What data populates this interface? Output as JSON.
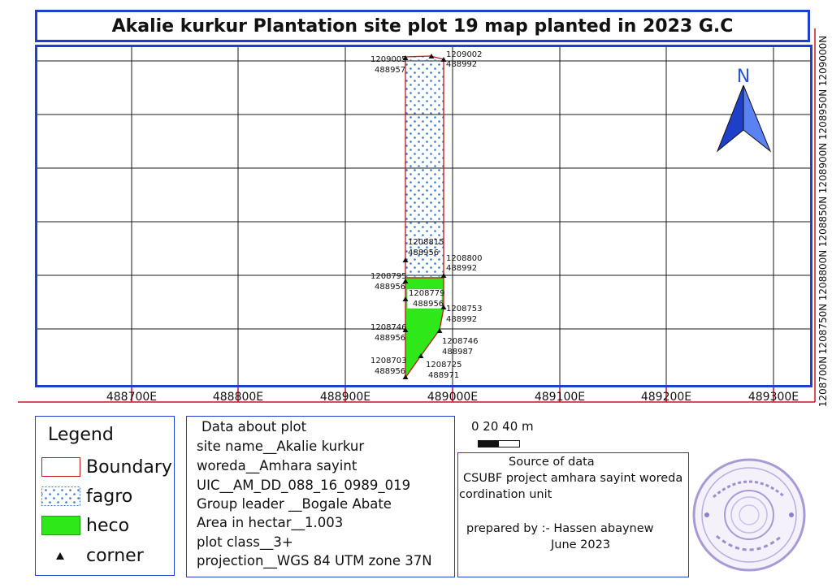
{
  "title": "Akalie kurkur Plantation site plot 19 map planted in 2023 G.C",
  "map": {
    "easting_labels": [
      "488700E",
      "488800E",
      "488900E",
      "489000E",
      "489100E",
      "489200E",
      "489300E"
    ],
    "northing_labels": [
      "1208700N",
      "1208750N",
      "1208800N",
      "1208850N",
      "1208900N",
      "1208950N",
      "1209000N"
    ],
    "north_letter": "N",
    "north_arrow_color": "#2b52e0",
    "boundary_color": "#c8141e",
    "fagro_dot_color": "#3a78c9",
    "heco_color": "#2fe81a",
    "corner_labels": [
      {
        "n": "1209005",
        "e": "488957"
      },
      {
        "n": "1209002",
        "e": "488992"
      },
      {
        "n": "1208815",
        "e": "488956"
      },
      {
        "n": "1208800",
        "e": "488992"
      },
      {
        "n": "1208795",
        "e": "488956"
      },
      {
        "n": "1208779",
        "e": "488956"
      },
      {
        "n": "1208753",
        "e": "488992"
      },
      {
        "n": "1208746",
        "e": "488956"
      },
      {
        "n": "1208746",
        "e": "488987"
      },
      {
        "n": "1208703",
        "e": "488956"
      },
      {
        "n": "1208725",
        "e": "488971"
      }
    ]
  },
  "legend": {
    "title": "Legend",
    "items": [
      {
        "label": "Boundary",
        "kind": "boundary"
      },
      {
        "label": "fagro",
        "kind": "fagro"
      },
      {
        "label": "heco",
        "kind": "heco"
      },
      {
        "label": "corner",
        "kind": "corner"
      }
    ]
  },
  "plot_info": {
    "heading": "Data about plot",
    "lines": [
      "site name__Akalie kurkur",
      "woreda__Amhara sayint",
      "UIC__AM_DD_088_16_0989_019",
      "Group leader __Bogale Abate",
      "Area in hectar__1.003",
      "plot class__3+",
      "projection__WGS 84 UTM zone 37N"
    ]
  },
  "scale_bar": {
    "label": "0  20 40 m"
  },
  "source": {
    "heading": "Source of data",
    "lines": [
      "CSUBF project amhara sayint woreda",
      "cordination unit"
    ],
    "prepared_by": "prepared by :- Hassen abaynew",
    "date": "June 2023"
  }
}
